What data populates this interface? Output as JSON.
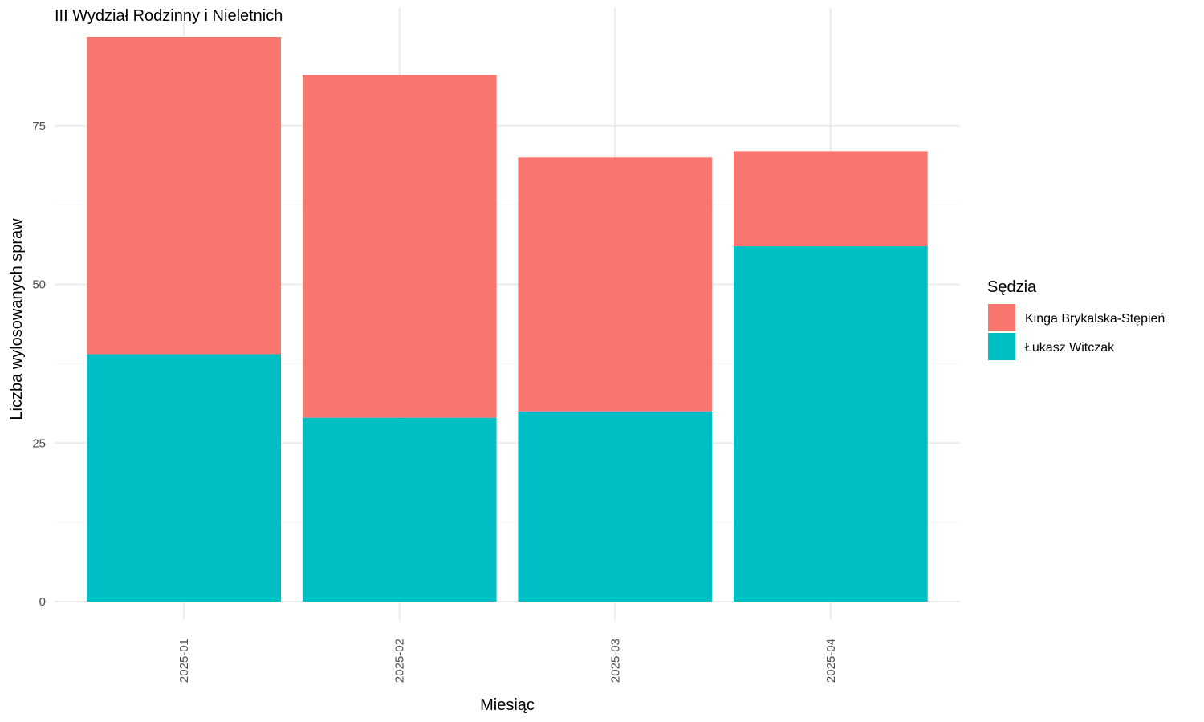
{
  "chart_data": {
    "type": "bar",
    "stacked": true,
    "title": "III Wydział Rodzinny i Nieletnich",
    "xlabel": "Miesiąc",
    "ylabel": "Liczba wylosowanych spraw",
    "categories": [
      "2025-01",
      "2025-02",
      "2025-03",
      "2025-04"
    ],
    "series": [
      {
        "name": "Łukasz Witczak",
        "color": "#00BFC4",
        "values": [
          39,
          29,
          30,
          56
        ]
      },
      {
        "name": "Kinga Brykalska-Stępień",
        "color": "#F8766D",
        "values": [
          50,
          54,
          40,
          15
        ]
      }
    ],
    "ylim": [
      0,
      89
    ],
    "yticks": [
      0,
      25,
      50,
      75
    ],
    "grid": true,
    "legend": {
      "title": "Sędzia",
      "position": "right",
      "order": [
        "Kinga Brykalska-Stępień",
        "Łukasz Witczak"
      ]
    }
  }
}
